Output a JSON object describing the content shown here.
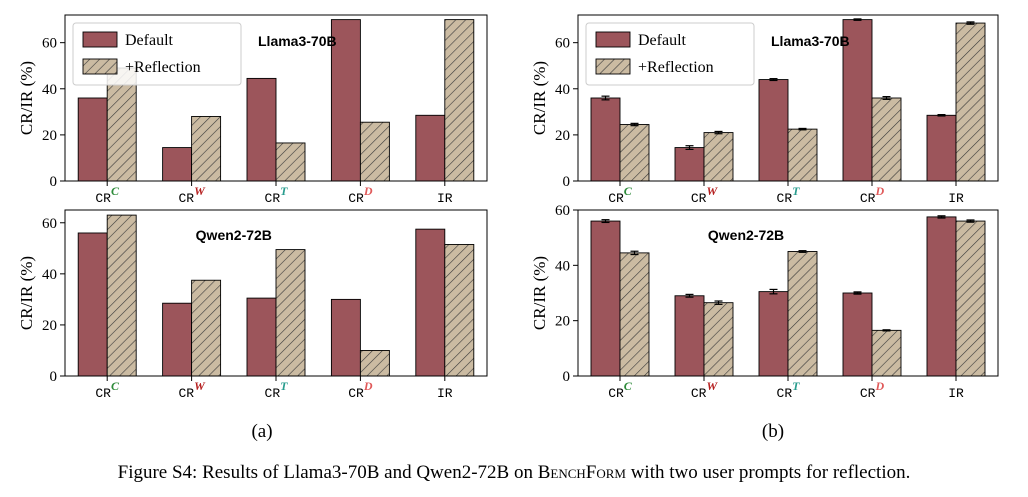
{
  "colors": {
    "default_fill": "#9c555b",
    "reflection_fill": "#cbbba2",
    "superscript_C": "#2e8b3a",
    "superscript_W": "#b51f1f",
    "superscript_T": "#2a9d8f",
    "superscript_D": "#e05a5a"
  },
  "subfigure_labels": [
    "(a)",
    "(b)"
  ],
  "caption": {
    "prefix": "Figure S4: Results of Llama3-70B and Qwen2-72B on ",
    "bench_name": "BenchForm",
    "suffix": " with two user prompts for reflection."
  },
  "chart_data": [
    {
      "type": "bar",
      "panel": "(a)",
      "model": "Llama3-70B",
      "ylabel": "CR/IR (%)",
      "ylim": [
        0,
        72
      ],
      "yticks": [
        0,
        20,
        40,
        60
      ],
      "categories": [
        {
          "base": "CR",
          "sup": "C"
        },
        {
          "base": "CR",
          "sup": "W"
        },
        {
          "base": "CR",
          "sup": "T"
        },
        {
          "base": "CR",
          "sup": "D"
        },
        {
          "base": "IR",
          "sup": ""
        }
      ],
      "legend": {
        "position": "top-left",
        "entries": [
          "Default",
          "+Reflection"
        ]
      },
      "series": [
        {
          "name": "Default",
          "values": [
            36,
            14.5,
            44.5,
            70,
            28.5
          ]
        },
        {
          "name": "+Reflection",
          "values": [
            49,
            28,
            16.5,
            25.5,
            70
          ]
        }
      ]
    },
    {
      "type": "bar",
      "panel": "(b)",
      "model": "Llama3-70B",
      "ylabel": "CR/IR (%)",
      "ylim": [
        0,
        72
      ],
      "yticks": [
        0,
        20,
        40,
        60
      ],
      "categories": [
        {
          "base": "CR",
          "sup": "C"
        },
        {
          "base": "CR",
          "sup": "W"
        },
        {
          "base": "CR",
          "sup": "T"
        },
        {
          "base": "CR",
          "sup": "D"
        },
        {
          "base": "IR",
          "sup": ""
        }
      ],
      "legend": {
        "position": "top-left",
        "entries": [
          "Default",
          "+Reflection"
        ]
      },
      "error_bars": true,
      "series": [
        {
          "name": "Default",
          "values": [
            36,
            14.5,
            44,
            70,
            28.5
          ],
          "errors": [
            0.8,
            0.8,
            0.4,
            0.3,
            0.3
          ]
        },
        {
          "name": "+Reflection",
          "values": [
            24.5,
            21,
            22.5,
            36,
            68.5
          ],
          "errors": [
            0.5,
            0.5,
            0.3,
            0.6,
            0.5
          ]
        }
      ]
    },
    {
      "type": "bar",
      "panel": "(a)",
      "model": "Qwen2-72B",
      "ylabel": "CR/IR (%)",
      "ylim": [
        0,
        65
      ],
      "yticks": [
        0,
        20,
        40,
        60
      ],
      "categories": [
        {
          "base": "CR",
          "sup": "C"
        },
        {
          "base": "CR",
          "sup": "W"
        },
        {
          "base": "CR",
          "sup": "T"
        },
        {
          "base": "CR",
          "sup": "D"
        },
        {
          "base": "IR",
          "sup": ""
        }
      ],
      "series": [
        {
          "name": "Default",
          "values": [
            56,
            28.5,
            30.5,
            30,
            57.5
          ]
        },
        {
          "name": "+Reflection",
          "values": [
            63,
            37.5,
            49.5,
            10,
            51.5
          ]
        }
      ]
    },
    {
      "type": "bar",
      "panel": "(b)",
      "model": "Qwen2-72B",
      "ylabel": "CR/IR (%)",
      "ylim": [
        0,
        60
      ],
      "yticks": [
        0,
        20,
        40,
        60
      ],
      "categories": [
        {
          "base": "CR",
          "sup": "C"
        },
        {
          "base": "CR",
          "sup": "W"
        },
        {
          "base": "CR",
          "sup": "T"
        },
        {
          "base": "CR",
          "sup": "D"
        },
        {
          "base": "IR",
          "sup": ""
        }
      ],
      "error_bars": true,
      "series": [
        {
          "name": "Default",
          "values": [
            56,
            29,
            30.5,
            30,
            57.5
          ],
          "errors": [
            0.5,
            0.5,
            0.8,
            0.4,
            0.4
          ]
        },
        {
          "name": "+Reflection",
          "values": [
            44.5,
            26.5,
            45,
            16.5,
            56
          ],
          "errors": [
            0.6,
            0.6,
            0.3,
            0.2,
            0.4
          ]
        }
      ]
    }
  ]
}
